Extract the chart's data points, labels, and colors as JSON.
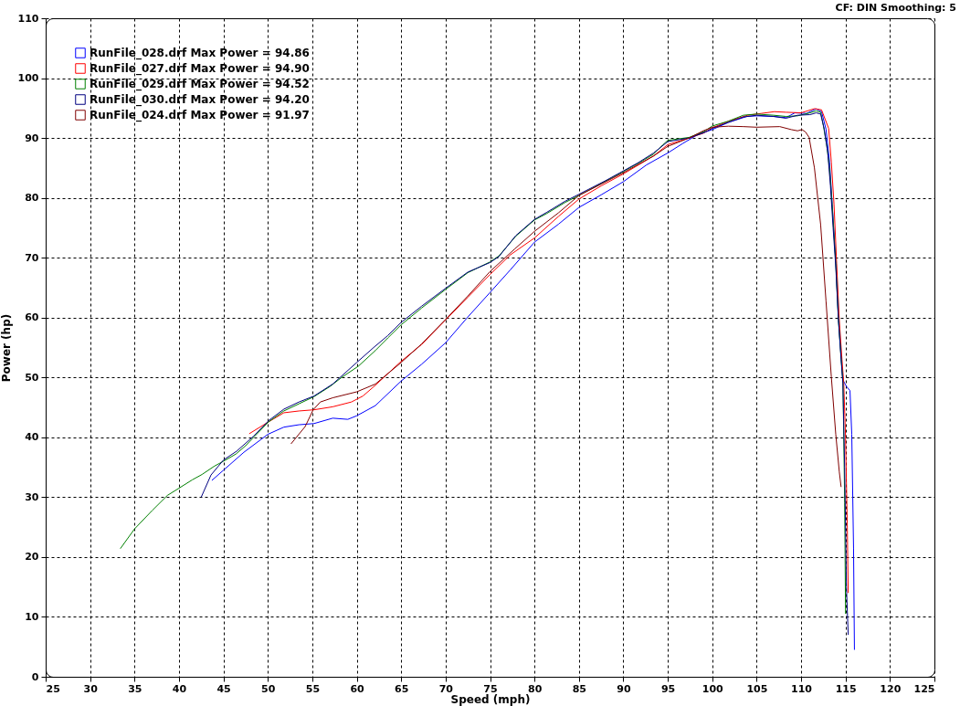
{
  "chart_data": {
    "type": "line",
    "xlabel": "Speed (mph)",
    "ylabel": "Power (hp)",
    "annotations": [
      "CF: DIN Smoothing: 5"
    ],
    "xlim": [
      25,
      125
    ],
    "xticks": [
      25,
      30,
      35,
      40,
      45,
      50,
      55,
      60,
      65,
      70,
      75,
      80,
      85,
      90,
      95,
      100,
      105,
      110,
      115,
      120,
      125
    ],
    "ylim": [
      0,
      110
    ],
    "yticks": [
      0,
      10,
      20,
      30,
      40,
      50,
      60,
      70,
      80,
      90,
      100,
      110
    ],
    "grid": true,
    "legend": "top left",
    "series": [
      {
        "name": "RunFile_028.drf Max Power = 94.86",
        "color": "#0000ff",
        "x": [
          43.7,
          45,
          47.3,
          50,
          51.8,
          53.5,
          55.2,
          57.3,
          59,
          60,
          62.1,
          65,
          67.3,
          70,
          72.5,
          75,
          77.3,
          80,
          82.7,
          85,
          87.5,
          90,
          92.6,
          95,
          96.7,
          98.4,
          100,
          101.8,
          103.9,
          105,
          106.9,
          108.3,
          109.3,
          110.6,
          111.7,
          112.3,
          112.8,
          113.2,
          113.5,
          113.9,
          114.2,
          114.5,
          114.7,
          115.1,
          115.5,
          115.7,
          115.9,
          116.0
        ],
        "values": [
          32.8,
          34.5,
          37.5,
          40.5,
          41.7,
          42.1,
          42.3,
          43.2,
          43.0,
          43.6,
          45.3,
          49.4,
          52.2,
          55.8,
          60.1,
          64.2,
          68.0,
          72.6,
          75.6,
          78.4,
          80.5,
          82.7,
          85.5,
          87.5,
          89.1,
          90.6,
          91.4,
          92.6,
          93.6,
          93.7,
          93.6,
          93.4,
          94.2,
          94.1,
          94.86,
          94.4,
          91.5,
          86.0,
          79.0,
          69.5,
          60.0,
          53.5,
          49.6,
          48.5,
          47.8,
          40.5,
          21.5,
          4.5
        ]
      },
      {
        "name": "RunFile_027.drf Max Power = 94.90",
        "color": "#ff0000",
        "x": [
          47.9,
          50.1,
          51.8,
          53.5,
          55.2,
          57.3,
          59.4,
          60.7,
          62.1,
          65,
          67.3,
          70,
          72.5,
          75,
          77.3,
          80,
          82.7,
          85,
          87.5,
          90,
          91.7,
          93.4,
          95,
          97,
          99,
          100,
          102,
          104,
          105.5,
          107,
          108.3,
          110,
          111.5,
          112.3,
          113.1,
          113.4,
          113.7,
          114.0,
          114.3,
          114.6,
          114.8,
          115.0,
          115.2,
          115.3
        ],
        "values": [
          40.6,
          42.6,
          44.1,
          44.4,
          44.6,
          45.1,
          45.9,
          46.9,
          48.7,
          52.7,
          55.5,
          59.6,
          63.4,
          67.2,
          70.5,
          73.3,
          76.9,
          79.8,
          82.0,
          84.0,
          85.5,
          87.0,
          88.9,
          89.8,
          90.8,
          91.7,
          92.9,
          93.8,
          94.1,
          94.4,
          94.3,
          94.2,
          94.9,
          94.7,
          91.6,
          86.0,
          79.0,
          69.0,
          59.5,
          53.0,
          49.0,
          40.0,
          25.0,
          14.0
        ]
      },
      {
        "name": "RunFile_029.drf Max Power = 94.52",
        "color": "#008000",
        "x": [
          33.4,
          35,
          37,
          38.7,
          40,
          41.5,
          42.6,
          44,
          45,
          46.4,
          47.5,
          48.4,
          50.1,
          51.8,
          53.5,
          55.2,
          57,
          58.3,
          60.2,
          62.1,
          63.5,
          65,
          67.3,
          70,
          72.5,
          75,
          76,
          77.9,
          80,
          81.4,
          83.4,
          85,
          87.9,
          90,
          91.7,
          93.4,
          94.4,
          95,
          97.4,
          99.1,
          100,
          101.8,
          103.5,
          105,
          106.9,
          108.3,
          109.6,
          111,
          111.7,
          112.2,
          112.5,
          112.9,
          113.2,
          113.5,
          113.9,
          114.2,
          114.5,
          114.7,
          114.8,
          114.9,
          115.0
        ],
        "values": [
          21.4,
          24.7,
          27.8,
          30.3,
          31.5,
          32.9,
          33.8,
          35.2,
          36.0,
          37.2,
          38.6,
          40.0,
          42.6,
          44.4,
          45.6,
          46.8,
          48.5,
          50.0,
          51.9,
          54.5,
          56.6,
          58.8,
          61.6,
          64.7,
          67.5,
          69.3,
          70.3,
          73.6,
          76.3,
          77.4,
          79.2,
          80.4,
          82.7,
          84.4,
          85.8,
          87.3,
          88.8,
          89.6,
          90.1,
          91.1,
          92.0,
          92.8,
          93.8,
          94.0,
          93.8,
          93.6,
          93.7,
          94.2,
          94.52,
          94.3,
          92.1,
          88.6,
          85.0,
          78.7,
          69.1,
          59.6,
          53.2,
          49.4,
          40.0,
          29.1,
          10.5
        ]
      },
      {
        "name": "RunFile_030.drf Max Power = 94.20",
        "color": "#000080",
        "x": [
          42.5,
          43.6,
          45,
          46.5,
          48.4,
          50.1,
          51.8,
          53.5,
          55.2,
          57.3,
          60,
          61.9,
          63.5,
          65,
          67.3,
          70,
          72.5,
          75,
          76,
          77.9,
          80,
          81.4,
          83.4,
          85,
          87.9,
          90,
          91.7,
          93.4,
          95,
          97.4,
          99.1,
          100,
          101.8,
          103.5,
          105,
          106.9,
          108.3,
          109.6,
          111,
          111.7,
          112.2,
          112.6,
          113.0,
          113.3,
          113.6,
          113.9,
          114.2,
          114.5,
          114.7,
          114.9,
          115.1,
          115.3
        ],
        "values": [
          30.0,
          33.7,
          36.2,
          37.7,
          40.2,
          42.8,
          44.7,
          45.9,
          46.9,
          48.9,
          52.5,
          55.0,
          57.0,
          59.2,
          61.9,
          64.9,
          67.6,
          69.2,
          70.2,
          73.7,
          76.4,
          77.6,
          79.4,
          80.6,
          82.8,
          84.5,
          85.9,
          87.5,
          89.4,
          90.0,
          90.9,
          91.6,
          92.6,
          93.5,
          93.8,
          93.6,
          93.3,
          93.8,
          93.9,
          94.2,
          94.0,
          91.5,
          87.5,
          82.0,
          75.0,
          68.5,
          59.6,
          53.0,
          49.0,
          35.0,
          15.0,
          7.0
        ]
      },
      {
        "name": "RunFile_024.drf Max Power = 91.97",
        "color": "#800000",
        "x": [
          52.6,
          54.2,
          55.1,
          55.9,
          57.3,
          60,
          62.1,
          65,
          67.3,
          70,
          72.5,
          75,
          77.8,
          80,
          82.7,
          85,
          87.5,
          90,
          91.7,
          93.4,
          95,
          97.4,
          99,
          100,
          101.8,
          103.5,
          105,
          107.6,
          108.9,
          109.6,
          110.1,
          110.5,
          110.9,
          111.5,
          112.2,
          112.8,
          113.4,
          113.9,
          114.3,
          114.5
        ],
        "values": [
          38.9,
          41.8,
          44.6,
          45.9,
          46.6,
          47.6,
          48.9,
          52.5,
          55.6,
          59.7,
          63.6,
          67.7,
          71.5,
          74.4,
          77.5,
          80.4,
          82.3,
          84.2,
          85.6,
          87.0,
          88.6,
          90.0,
          91.2,
          91.8,
          91.97,
          91.9,
          91.8,
          91.9,
          91.4,
          91.2,
          91.4,
          91.0,
          90.1,
          85.0,
          75.5,
          62.8,
          50.1,
          40.5,
          34.2,
          31.7
        ]
      }
    ]
  }
}
